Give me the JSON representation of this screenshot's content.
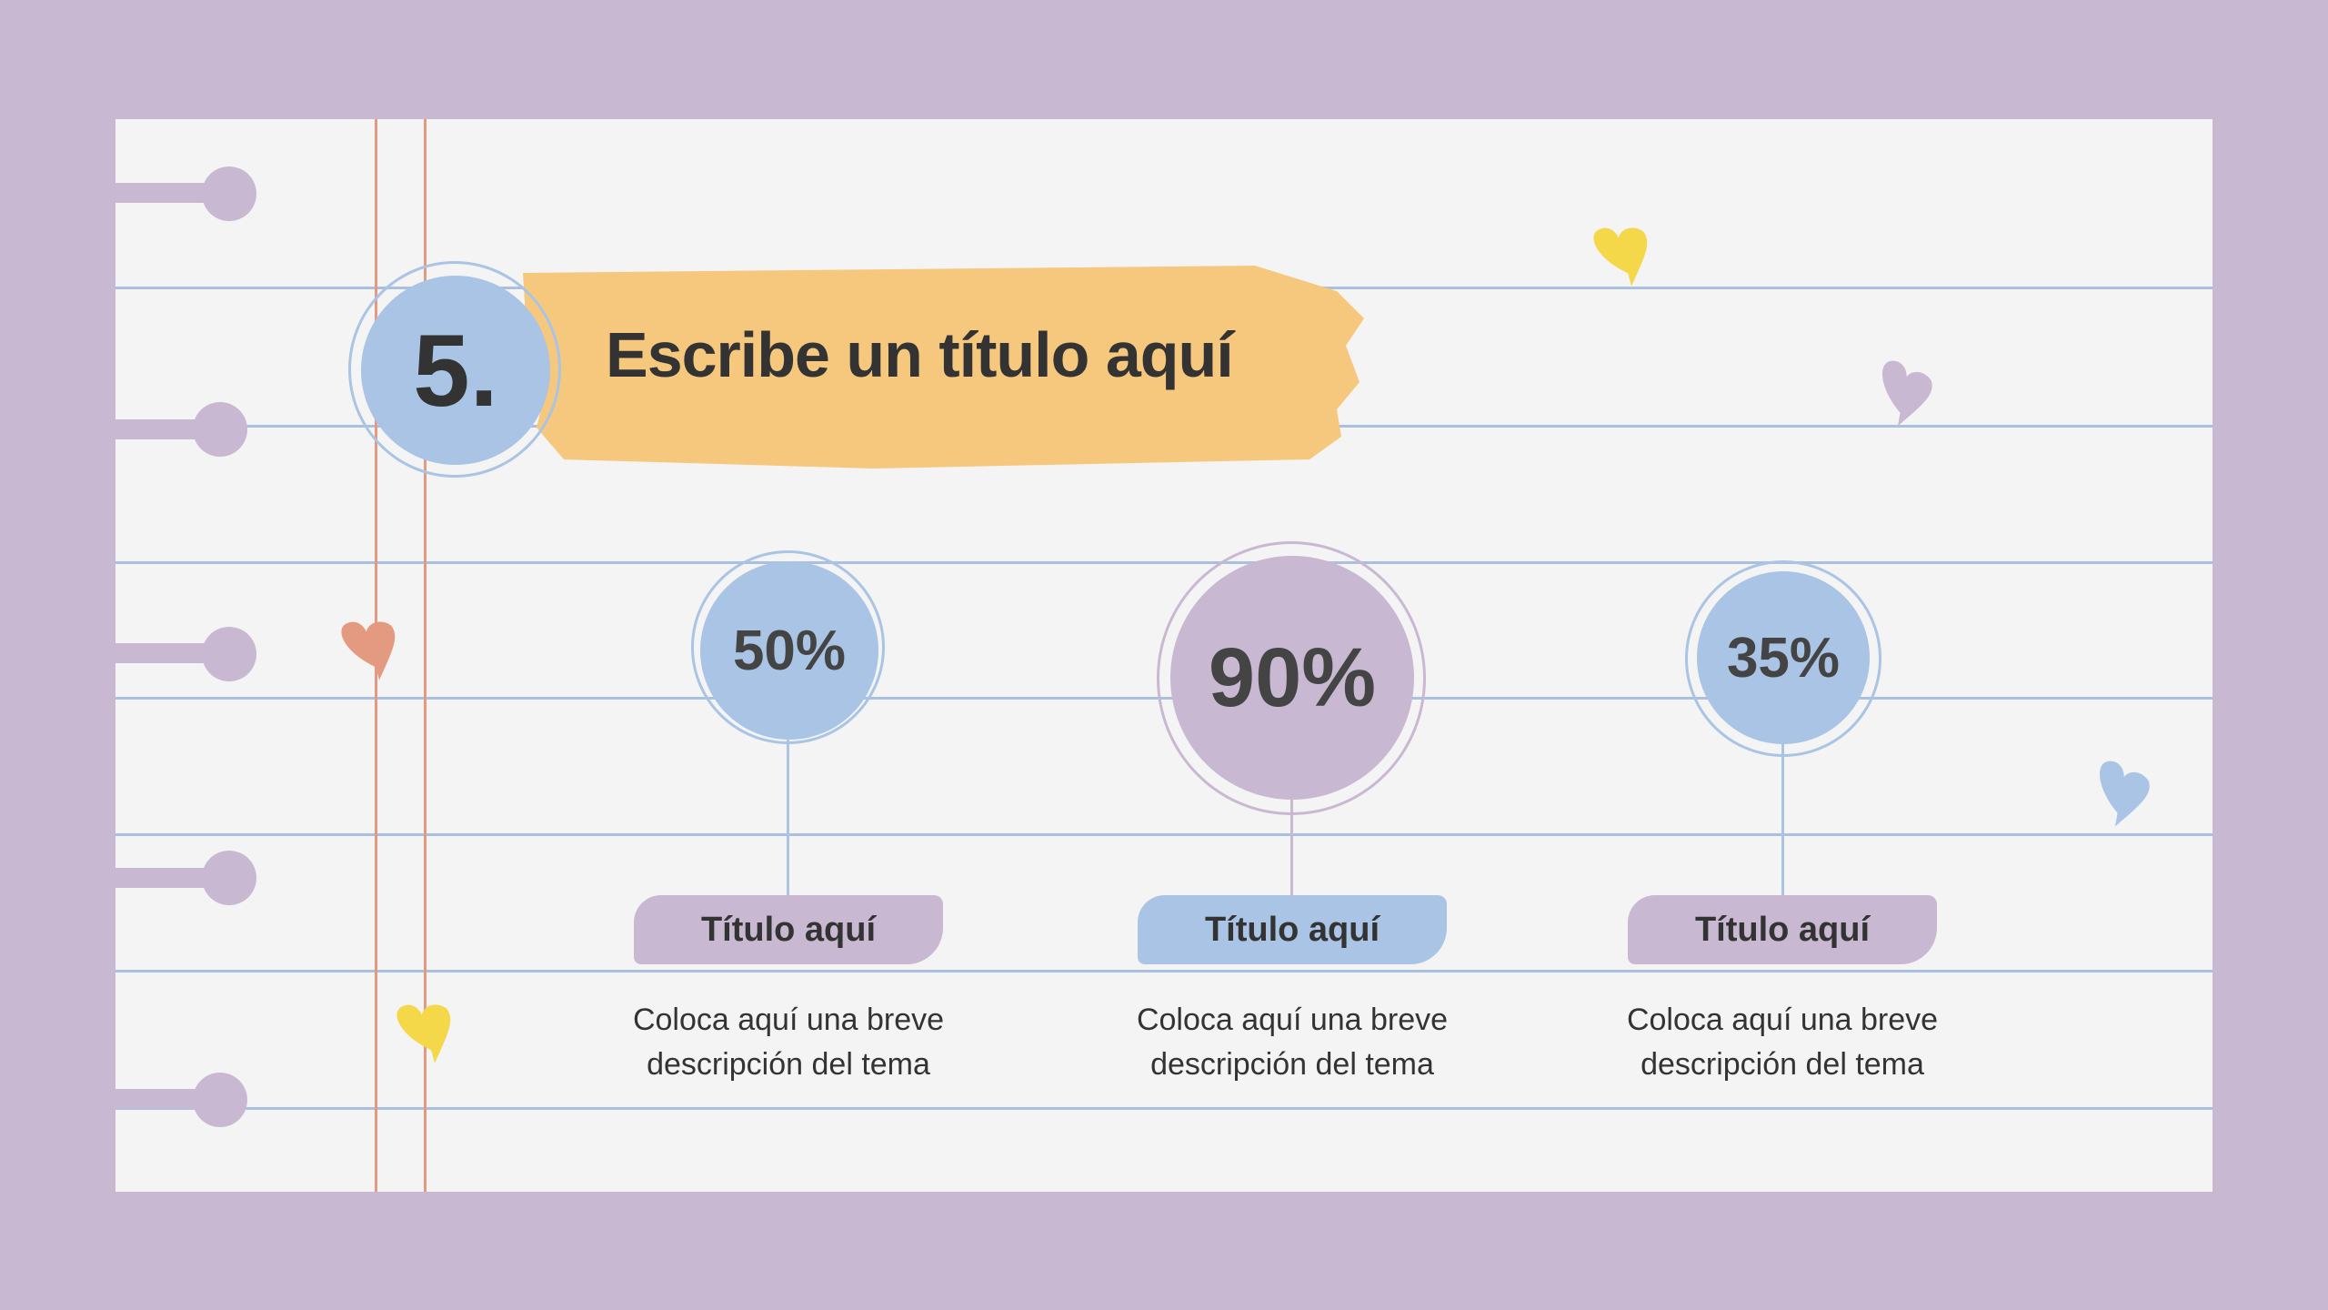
{
  "slide": {
    "number": "5.",
    "title": "Escribe un título aquí"
  },
  "items": [
    {
      "percent": "50%",
      "value": 50,
      "label": "Título aquí",
      "description_line1": "Coloca aquí una breve",
      "description_line2": "descripción del tema",
      "circle_color": "#a9c4e4",
      "label_color": "#c9b8d2"
    },
    {
      "percent": "90%",
      "value": 90,
      "label": "Título aquí",
      "description_line1": "Coloca aquí una breve",
      "description_line2": "descripción del tema",
      "circle_color": "#c9b8d2",
      "label_color": "#a9c4e4"
    },
    {
      "percent": "35%",
      "value": 35,
      "label": "Título aquí",
      "description_line1": "Coloca aquí una breve",
      "description_line2": "descripción del tema",
      "circle_color": "#a9c4e4",
      "label_color": "#c9b8d2"
    }
  ],
  "colors": {
    "background": "#c9b8d2",
    "paper": "#f4f4f4",
    "rule_lines": "#a9c0e0",
    "margin_lines": "#e39a80",
    "title_brush": "#f5c87e"
  },
  "decorations": [
    "heart-icon-yellow",
    "heart-icon-purple",
    "heart-icon-blue",
    "heart-icon-orange",
    "heart-icon-yellow"
  ]
}
